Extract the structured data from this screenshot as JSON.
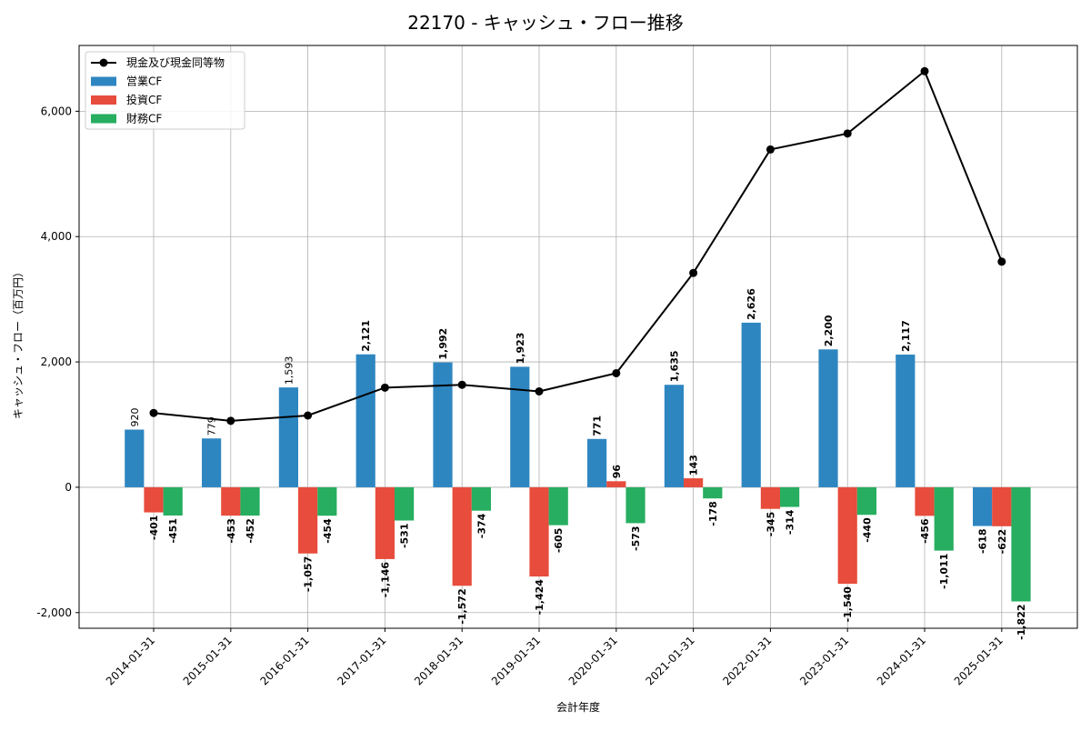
{
  "chart_data": {
    "type": "bar",
    "title": "22170 - キャッシュ・フロー推移",
    "xlabel": "会計年度",
    "ylabel": "キャッシュ・フロー（百万円）",
    "ylim": [
      -2250,
      7050
    ],
    "yticks": [
      -2000,
      0,
      2000,
      4000,
      6000
    ],
    "ytick_labels": [
      "-2,000",
      "0",
      "2,000",
      "4,000",
      "6,000"
    ],
    "grid": true,
    "legend_position": "top-left",
    "categories": [
      "2014-01-31",
      "2015-01-31",
      "2016-01-31",
      "2017-01-31",
      "2018-01-31",
      "2019-01-31",
      "2020-01-31",
      "2021-01-31",
      "2022-01-31",
      "2023-01-31",
      "2024-01-31",
      "2025-01-31"
    ],
    "series": [
      {
        "name": "営業CF",
        "kind": "bar",
        "color": "#2e86c1",
        "values": [
          920,
          779,
          1593,
          2121,
          1992,
          1923,
          771,
          1635,
          2626,
          2200,
          2117,
          -618
        ],
        "labels": [
          "920",
          "779",
          "1,593",
          "2,121",
          "1,992",
          "1,923",
          "771",
          "1,635",
          "2,626",
          "2,200",
          "2,117",
          "-618"
        ]
      },
      {
        "name": "投資CF",
        "kind": "bar",
        "color": "#e74c3c",
        "values": [
          -401,
          -453,
          -1057,
          -1146,
          -1572,
          -1424,
          96,
          143,
          -345,
          -1540,
          -456,
          -622
        ],
        "labels": [
          "-401",
          "-453",
          "-1,057",
          "-1,146",
          "-1,572",
          "-1,424",
          "96",
          "143",
          "-345",
          "-1,540",
          "-456",
          "-622"
        ]
      },
      {
        "name": "財務CF",
        "kind": "bar",
        "color": "#27ae60",
        "values": [
          -451,
          -452,
          -454,
          -531,
          -374,
          -605,
          -573,
          -178,
          -314,
          -440,
          -1011,
          -1822
        ],
        "labels": [
          "-451",
          "-452",
          "-454",
          "-531",
          "-374",
          "-605",
          "-573",
          "-178",
          "-314",
          "-440",
          "-1,011",
          "-1,822"
        ]
      },
      {
        "name": "現金及び現金同等物",
        "kind": "line",
        "color": "#000000",
        "values": [
          1185,
          1060,
          1145,
          1590,
          1635,
          1530,
          1820,
          3420,
          5390,
          5645,
          6640,
          3600
        ]
      }
    ]
  }
}
